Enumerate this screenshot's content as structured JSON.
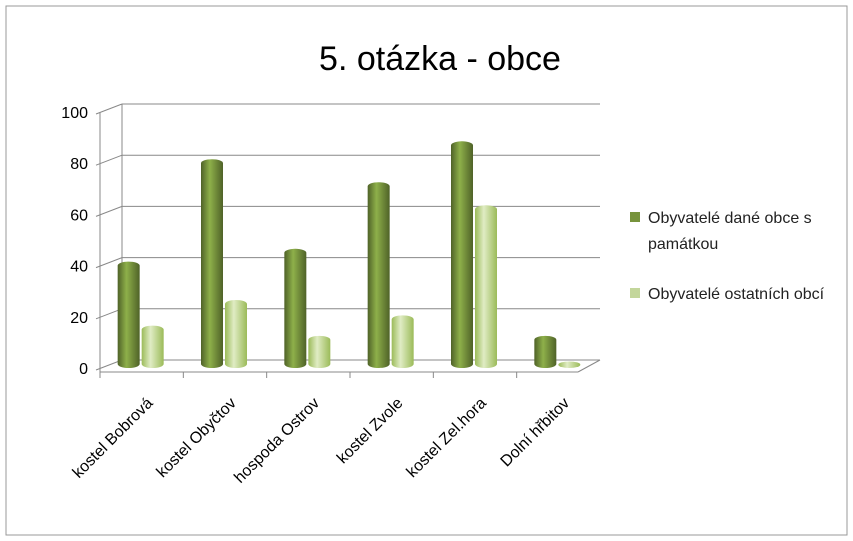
{
  "chart_data": {
    "type": "bar3d",
    "title": "5. otázka - obce",
    "categories": [
      "kostel Bobrová",
      "kostel Obyčtov",
      "hospoda Ostrov",
      "kostel Zvole",
      "kostel Zel.hora",
      "Dolní hřbitov"
    ],
    "series": [
      {
        "name": "Obyvatelé dané obce s památkou",
        "color": "#77933c",
        "values": [
          40,
          80,
          45,
          71,
          87,
          11
        ]
      },
      {
        "name": "Obyvatelé ostatních obcí",
        "color": "#c3d69b",
        "values": [
          15,
          25,
          11,
          19,
          62,
          1
        ]
      }
    ],
    "ylim": [
      0,
      100
    ],
    "yticks": [
      0,
      20,
      40,
      60,
      80,
      100
    ],
    "grid": true,
    "legend": "right"
  }
}
